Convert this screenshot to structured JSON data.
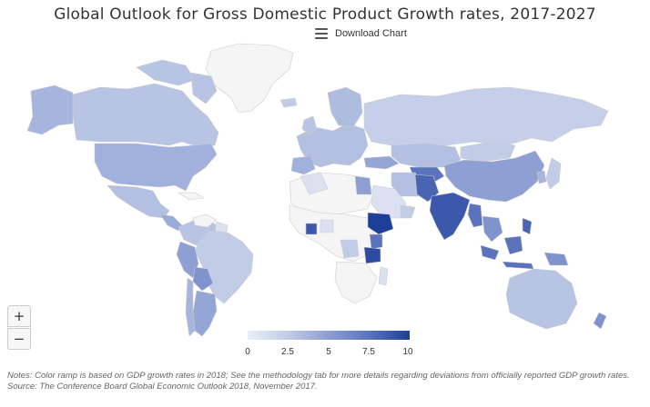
{
  "title": "Global Outlook for Gross Domestic Product Growth rates, 2017-2027",
  "toolbar": {
    "download_label": "Download Chart",
    "download_icon": "hamburger-menu-icon"
  },
  "zoom": {
    "in_label": "+",
    "out_label": "−"
  },
  "legend": {
    "ticks": [
      "0",
      "2.5",
      "5",
      "7.5",
      "10"
    ],
    "min": 0,
    "max": 10,
    "color_low": "#eaeef8",
    "color_high": "#1e3f98"
  },
  "colors": {
    "no_data": "#f5f5f5",
    "border": "#cccccc"
  },
  "notes": {
    "line1": "Notes: Color ramp is based on GDP growth rates in 2018; See the methodology tab for more details regarding deviations from officially reported GDP growth rates.",
    "source": "Source: The Conference Board Global Economic Outlook 2018, November 2017."
  }
}
